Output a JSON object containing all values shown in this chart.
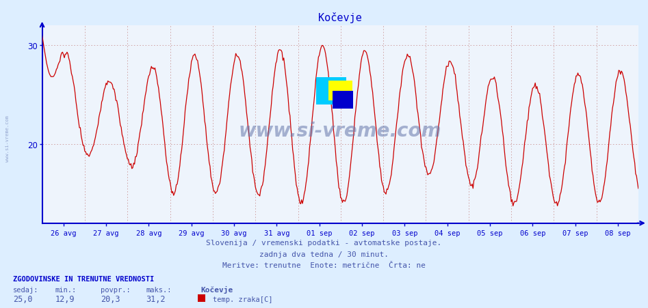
{
  "title": "Kočevje",
  "bg_color": "#ddeeff",
  "plot_bg_color": "#eef4fc",
  "line_color": "#cc0000",
  "axis_color": "#0000cc",
  "grid_color": "#cc9999",
  "text_color": "#4455aa",
  "title_color": "#0000cc",
  "ylim": [
    12,
    32
  ],
  "yticks": [
    20,
    30
  ],
  "xlabels": [
    "26 avg",
    "27 avg",
    "28 avg",
    "29 avg",
    "30 avg",
    "31 avg",
    "01 sep",
    "02 sep",
    "03 sep",
    "04 sep",
    "05 sep",
    "06 sep",
    "07 sep",
    "08 sep"
  ],
  "subtitle1": "Slovenija / vremenski podatki - avtomatske postaje.",
  "subtitle2": "zadnja dva tedna / 30 minut.",
  "subtitle3": "Meritve: trenutne  Enote: metrične  Črta: ne",
  "footer_title": "ZGODOVINSKE IN TRENUTNE VREDNOSTI",
  "footer_labels": [
    "sedaj:",
    "min.:",
    "povpr.:",
    "maks.:"
  ],
  "footer_values": [
    "25,0",
    "12,9",
    "20,3",
    "31,2"
  ],
  "footer_station": "Kočevje",
  "footer_series": "temp. zraka[C]",
  "watermark": "www.si-vreme.com",
  "num_points": 672,
  "min_val": 12.9,
  "max_val": 31.2,
  "avg_val": 20.3
}
